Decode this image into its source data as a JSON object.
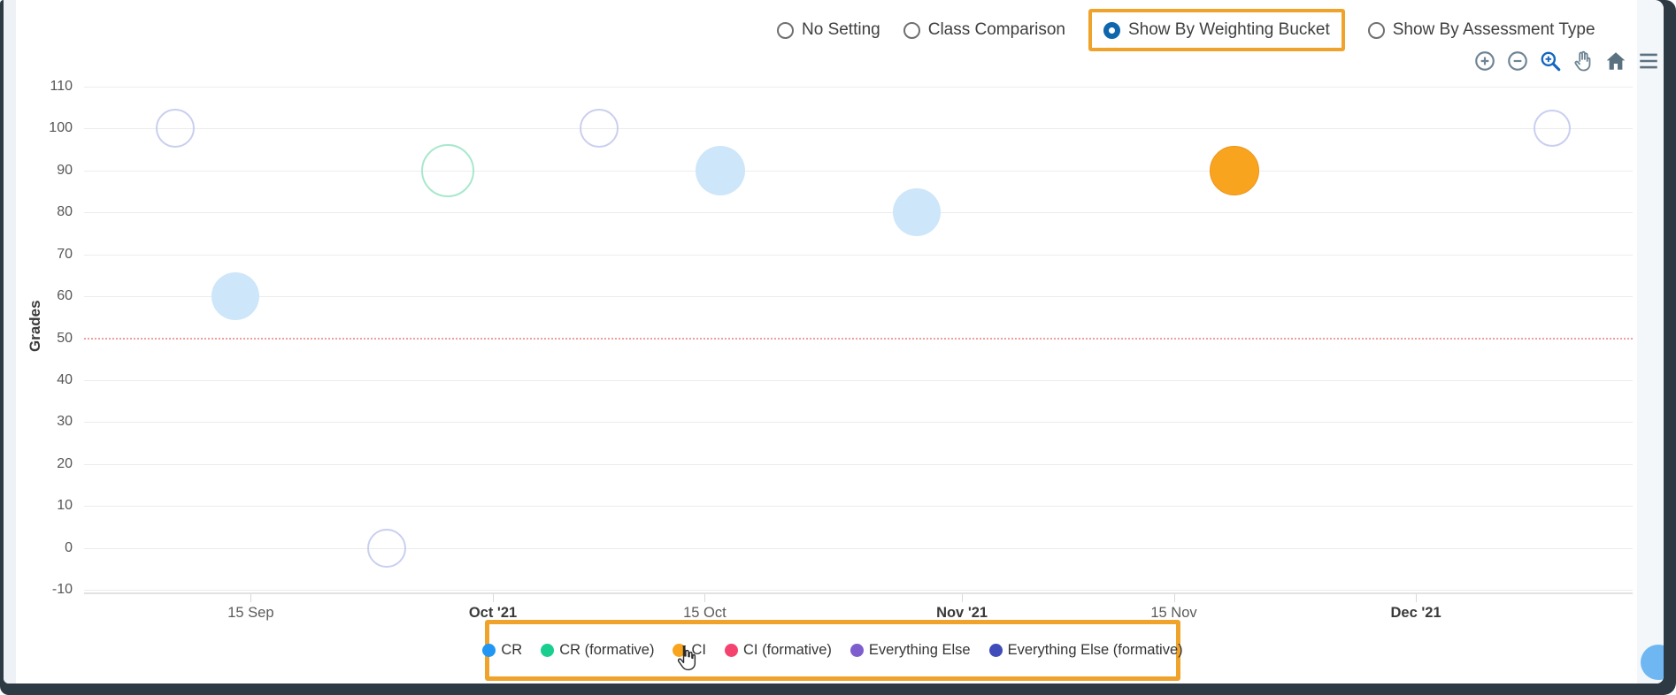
{
  "window": {
    "frame_color": "#2d3943",
    "highlight_color": "#f0a32b",
    "fab_color": "#6fb7f2"
  },
  "radio_group": {
    "options": [
      {
        "label": "No Setting",
        "selected": false,
        "highlighted": false
      },
      {
        "label": "Class Comparison",
        "selected": false,
        "highlighted": false
      },
      {
        "label": "Show By Weighting Bucket",
        "selected": true,
        "highlighted": true
      },
      {
        "label": "Show By Assessment Type",
        "selected": false,
        "highlighted": false
      }
    ],
    "selected_color": "#0f66ad"
  },
  "toolbar": {
    "icons": [
      {
        "name": "zoom-in-icon",
        "active": false
      },
      {
        "name": "zoom-out-icon",
        "active": false
      },
      {
        "name": "box-zoom-icon",
        "active": true
      },
      {
        "name": "pan-hand-icon",
        "active": false
      },
      {
        "name": "home-reset-icon",
        "active": false
      },
      {
        "name": "menu-icon",
        "active": false
      }
    ],
    "icon_color": "#6e8494",
    "active_color": "#1566c0"
  },
  "chart_data": {
    "type": "scatter",
    "title": "",
    "xlabel": "",
    "ylabel": "Grades",
    "ylim": [
      -10,
      110
    ],
    "grid": true,
    "y_ticks": [
      110,
      100,
      90,
      80,
      70,
      60,
      50,
      40,
      30,
      20,
      10,
      0,
      -10
    ],
    "threshold_line": {
      "value": 50,
      "color": "#ef9f9f",
      "style": "dotted"
    },
    "x_ticks": [
      {
        "label": "15 Sep",
        "date": "2021-09-15",
        "bold": false
      },
      {
        "label": "Oct '21",
        "date": "2021-10-01",
        "bold": true
      },
      {
        "label": "15 Oct",
        "date": "2021-10-15",
        "bold": false
      },
      {
        "label": "Nov '21",
        "date": "2021-11-01",
        "bold": true
      },
      {
        "label": "15 Nov",
        "date": "2021-11-15",
        "bold": false
      },
      {
        "label": "Dec '21",
        "date": "2021-12-01",
        "bold": true
      }
    ],
    "points": [
      {
        "series": "Everything Else (formative)",
        "date": "2021-09-10",
        "grade": 100,
        "style": "outline",
        "radius": 22,
        "color": "#c9cfef"
      },
      {
        "series": "CR",
        "date": "2021-09-14",
        "grade": 60,
        "style": "dimmed-fill",
        "radius": 27,
        "color": "#cde6f9"
      },
      {
        "series": "Everything Else (formative)",
        "date": "2021-09-24",
        "grade": 0,
        "style": "outline",
        "radius": 22,
        "color": "#c9cfef"
      },
      {
        "series": "CR (formative)",
        "date": "2021-09-28",
        "grade": 90,
        "style": "outline",
        "radius": 30,
        "color": "#a8e8cd"
      },
      {
        "series": "Everything Else (formative)",
        "date": "2021-10-08",
        "grade": 100,
        "style": "outline",
        "radius": 22,
        "color": "#c9cfef"
      },
      {
        "series": "CR",
        "date": "2021-10-16",
        "grade": 90,
        "style": "dimmed-fill",
        "radius": 28,
        "color": "#cde6f9"
      },
      {
        "series": "CR",
        "date": "2021-10-29",
        "grade": 80,
        "style": "dimmed-fill",
        "radius": 27,
        "color": "#cde6f9"
      },
      {
        "series": "CI",
        "date": "2021-11-19",
        "grade": 90,
        "style": "highlighted",
        "radius": 28,
        "color": "#f9a41f",
        "border": "#ec941a"
      },
      {
        "series": "Everything Else (formative)",
        "date": "2021-12-10",
        "grade": 100,
        "style": "outline",
        "radius": 21,
        "color": "#c9cfef"
      }
    ],
    "legend_position": "bottom",
    "legend": [
      {
        "name": "CR",
        "color": "#2196f3"
      },
      {
        "name": "CR (formative)",
        "color": "#18cf8f"
      },
      {
        "name": "CI",
        "color": "#f8a41d"
      },
      {
        "name": "CI (formative)",
        "color": "#f4436f"
      },
      {
        "name": "Everything Else",
        "color": "#7e5ece"
      },
      {
        "name": "Everything Else (formative)",
        "color": "#3f4cba"
      }
    ]
  },
  "cursor": {
    "name": "hand-pointer",
    "over": "CI legend item"
  }
}
